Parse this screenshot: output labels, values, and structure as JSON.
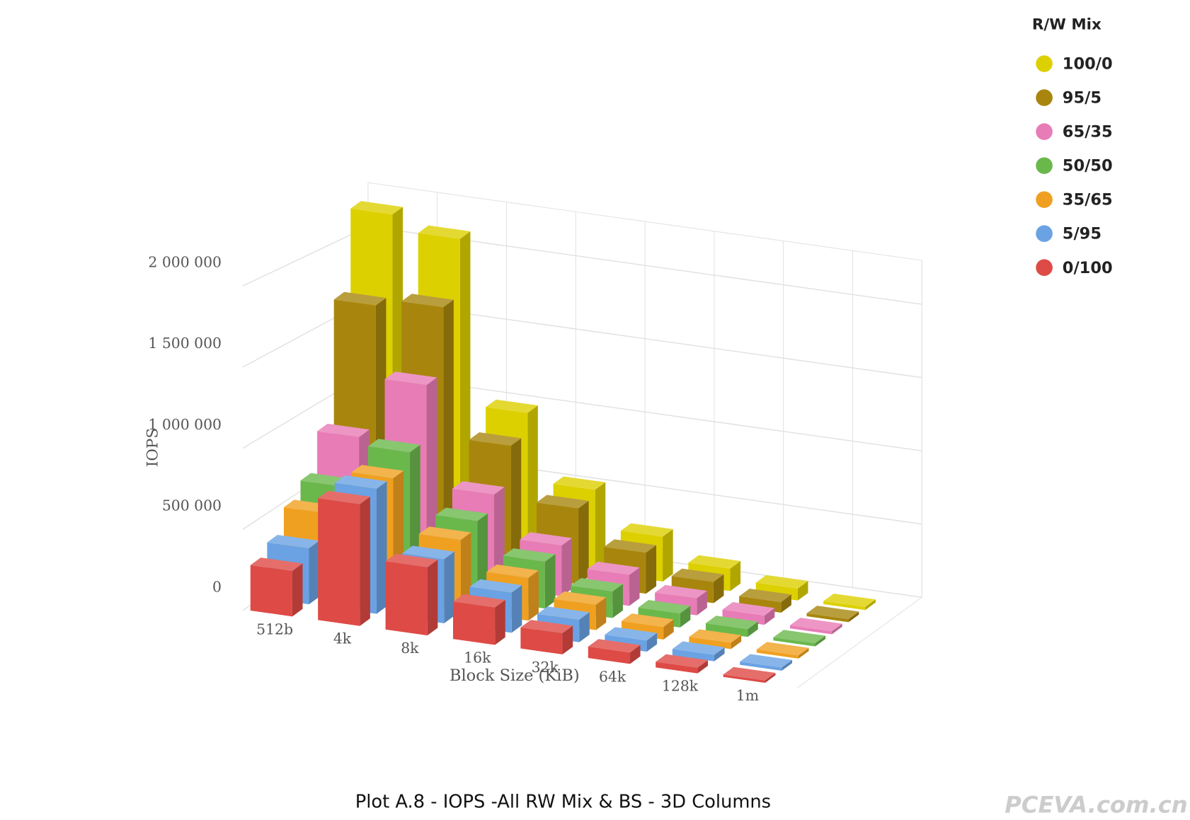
{
  "chart_data": {
    "type": "bar3d",
    "caption": "Plot A.8 - IOPS -All RW Mix & BS - 3D Columns",
    "watermark": "PCEVA.com.cn",
    "x_label": "Block Size (KiB)",
    "y_label": "IOPS",
    "legend_title": "R/W Mix",
    "legend_position": "top-right",
    "grid": true,
    "categories": [
      "512b",
      "4k",
      "8k",
      "16k",
      "32k",
      "64k",
      "128k",
      "1m"
    ],
    "ylim": [
      0,
      2300000
    ],
    "yticks": [
      0,
      {
        "value": 500000,
        "label": "500 000"
      },
      {
        "value": 1000000,
        "label": "1 000 000"
      },
      {
        "value": 1500000,
        "label": "1 500 000"
      },
      {
        "value": 2000000,
        "label": "2 000 000"
      }
    ],
    "series": [
      {
        "name": "100/0",
        "color": "#ddd000",
        "values": [
          2200000,
          2100000,
          1000000,
          550000,
          300000,
          150000,
          80000,
          20000
        ]
      },
      {
        "name": "95/5",
        "color": "#a8860e",
        "values": [
          1650000,
          1700000,
          850000,
          500000,
          270000,
          140000,
          70000,
          20000
        ]
      },
      {
        "name": "65/35",
        "color": "#e87cb7",
        "values": [
          850000,
          1250000,
          600000,
          330000,
          200000,
          110000,
          60000,
          20000
        ]
      },
      {
        "name": "50/50",
        "color": "#6ab84c",
        "values": [
          600000,
          880000,
          500000,
          300000,
          170000,
          90000,
          50000,
          20000
        ]
      },
      {
        "name": "35/65",
        "color": "#f0a020",
        "values": [
          500000,
          780000,
          450000,
          270000,
          160000,
          80000,
          40000,
          20000
        ]
      },
      {
        "name": "5/95",
        "color": "#6aa2e4",
        "values": [
          350000,
          780000,
          400000,
          250000,
          140000,
          70000,
          40000,
          20000
        ]
      },
      {
        "name": "0/100",
        "color": "#de4a45",
        "values": [
          280000,
          750000,
          420000,
          230000,
          130000,
          70000,
          35000,
          15000
        ]
      }
    ]
  }
}
